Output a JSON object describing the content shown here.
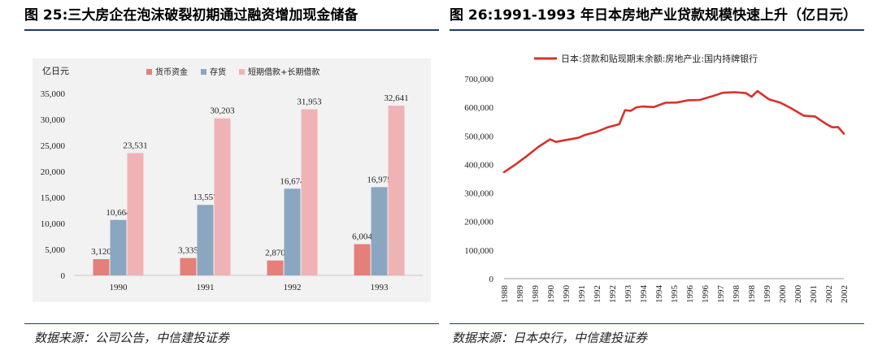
{
  "left": {
    "title": "图 25:三大房企在泡沫破裂初期通过融资增加现金储备",
    "source": "数据来源：公司公告，中信建投证券",
    "chart_data": {
      "type": "bar",
      "ylabel": "亿日元",
      "categories": [
        "1990",
        "1991",
        "1992",
        "1993"
      ],
      "ylim": [
        0,
        35000
      ],
      "yticks": [
        0,
        5000,
        10000,
        15000,
        20000,
        25000,
        30000,
        35000
      ],
      "ytick_labels": [
        "0",
        "5,000",
        "10,000",
        "15,000",
        "20,000",
        "25,000",
        "30,000",
        "35,000"
      ],
      "series": [
        {
          "name": "货币资金",
          "color": "#e47f7a",
          "values": [
            3120,
            3335,
            2870,
            6004
          ],
          "labels": [
            "3,120",
            "3,335",
            "2,870",
            "6,004"
          ]
        },
        {
          "name": "存货",
          "color": "#8ba6c1",
          "values": [
            10664,
            13557,
            16674,
            16975
          ],
          "labels": [
            "10,664",
            "13,557",
            "16,674",
            "16,975"
          ]
        },
        {
          "name": "短期借款+长期借款",
          "color": "#f0b3b5",
          "values": [
            23531,
            30203,
            31953,
            32641
          ],
          "labels": [
            "23,531",
            "30,203",
            "31,953",
            "32,641"
          ]
        }
      ]
    }
  },
  "right": {
    "title": "图 26:1991-1993 年日本房地产业贷款规模快速上升（亿日元）",
    "source": "数据来源：日本央行，中信建投证券",
    "chart_data": {
      "type": "line",
      "legend": "日本:贷款和贴现期末余额:房地产业:国内持牌银行",
      "color": "#d9302a",
      "ylim": [
        0,
        700000
      ],
      "yticks": [
        0,
        100000,
        200000,
        300000,
        400000,
        500000,
        600000,
        700000
      ],
      "ytick_labels": [
        "0",
        "100,000",
        "200,000",
        "300,000",
        "400,000",
        "500,000",
        "600,000",
        "700,000"
      ],
      "xticks": [
        "1988",
        "1989",
        "1989",
        "1990",
        "1990",
        "1991",
        "1992",
        "1992",
        "1993",
        "1994",
        "1994",
        "1995",
        "1996",
        "1996",
        "1997",
        "1998",
        "1998",
        "1999",
        "2000",
        "2000",
        "2001",
        "2002",
        "2002"
      ],
      "x": [
        1988.0,
        1988.5,
        1989.0,
        1989.5,
        1990.0,
        1990.25,
        1990.5,
        1991.0,
        1991.25,
        1991.5,
        1992.0,
        1992.5,
        1993.0,
        1993.25,
        1993.5,
        1993.75,
        1994.0,
        1994.5,
        1995.0,
        1995.5,
        1996.0,
        1996.5,
        1997.0,
        1997.5,
        1998.0,
        1998.5,
        1998.75,
        1999.0,
        1999.5,
        2000.0,
        2000.5,
        2001.0,
        2001.5,
        2002.0,
        2002.25,
        2002.5,
        2002.75
      ],
      "y": [
        373000,
        400000,
        430000,
        462000,
        488000,
        479000,
        483000,
        490000,
        494000,
        503000,
        514000,
        530000,
        541000,
        590000,
        588000,
        600000,
        603000,
        601000,
        616000,
        617000,
        625000,
        626000,
        638000,
        651000,
        653000,
        650000,
        637000,
        657000,
        628000,
        616000,
        595000,
        571000,
        568000,
        541000,
        530000,
        531000,
        508000
      ]
    }
  }
}
